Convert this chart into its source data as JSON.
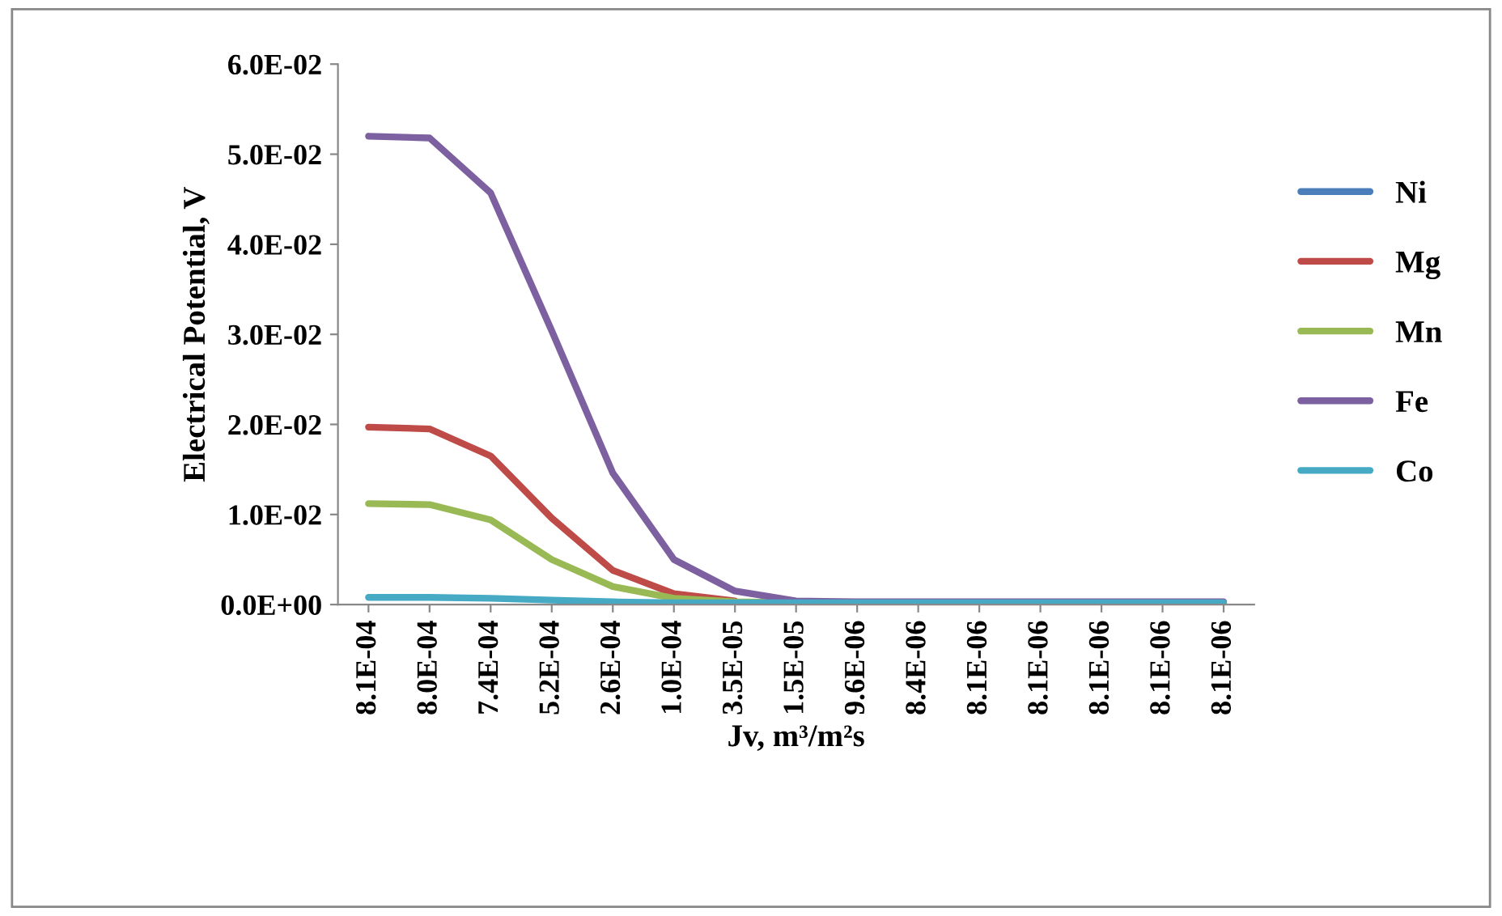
{
  "chart_data": {
    "type": "line",
    "xlabel": "Jv, m³/m²s",
    "ylabel": "Electrical Potential, V",
    "categories": [
      "8.1E-04",
      "8.0E-04",
      "7.4E-04",
      "5.2E-04",
      "2.6E-04",
      "1.0E-04",
      "3.5E-05",
      "1.5E-05",
      "9.6E-06",
      "8.4E-06",
      "8.1E-06",
      "8.1E-06",
      "8.1E-06",
      "8.1E-06",
      "8.1E-06"
    ],
    "series": [
      {
        "name": "Ni",
        "color": "#4a7ebb",
        "values": [
          null,
          null,
          null,
          null,
          null,
          null,
          null,
          null,
          null,
          null,
          null,
          null,
          null,
          null,
          null
        ]
      },
      {
        "name": "Mg",
        "color": "#be4b48",
        "values": [
          0.0197,
          0.0195,
          0.0165,
          0.0096,
          0.0038,
          0.0012,
          0.0004,
          null,
          null,
          null,
          null,
          null,
          null,
          null,
          null
        ]
      },
      {
        "name": "Mn",
        "color": "#98b954",
        "values": [
          0.0112,
          0.0111,
          0.0094,
          0.005,
          0.002,
          0.0007,
          0.0003,
          0.0002,
          0.0002,
          null,
          null,
          null,
          null,
          null,
          null
        ]
      },
      {
        "name": "Fe",
        "color": "#7d60a0",
        "values": [
          0.052,
          0.0518,
          0.0457,
          0.0304,
          0.0146,
          0.005,
          0.0015,
          0.0004,
          0.0003,
          0.0003,
          0.0003,
          0.0003,
          0.0003,
          0.0003,
          0.0003
        ]
      },
      {
        "name": "Co",
        "color": "#46aac5",
        "values": [
          0.0008,
          0.0008,
          0.0007,
          0.0005,
          0.0003,
          0.0002,
          0.0002,
          0.0002,
          0.0002,
          0.0002,
          0.0002,
          0.0002,
          0.0002,
          0.0002,
          0.0002
        ]
      }
    ],
    "ylim": [
      0,
      0.06
    ],
    "yticks": [
      {
        "value": 0,
        "label": "0.0E+00"
      },
      {
        "value": 0.01,
        "label": "1.0E-02"
      },
      {
        "value": 0.02,
        "label": "2.0E-02"
      },
      {
        "value": 0.03,
        "label": "3.0E-02"
      },
      {
        "value": 0.04,
        "label": "4.0E-02"
      },
      {
        "value": 0.05,
        "label": "5.0E-02"
      },
      {
        "value": 0.06,
        "label": "6.0E-02"
      }
    ],
    "grid": false,
    "legend": "right",
    "marker": "none",
    "line_style": "solid"
  }
}
